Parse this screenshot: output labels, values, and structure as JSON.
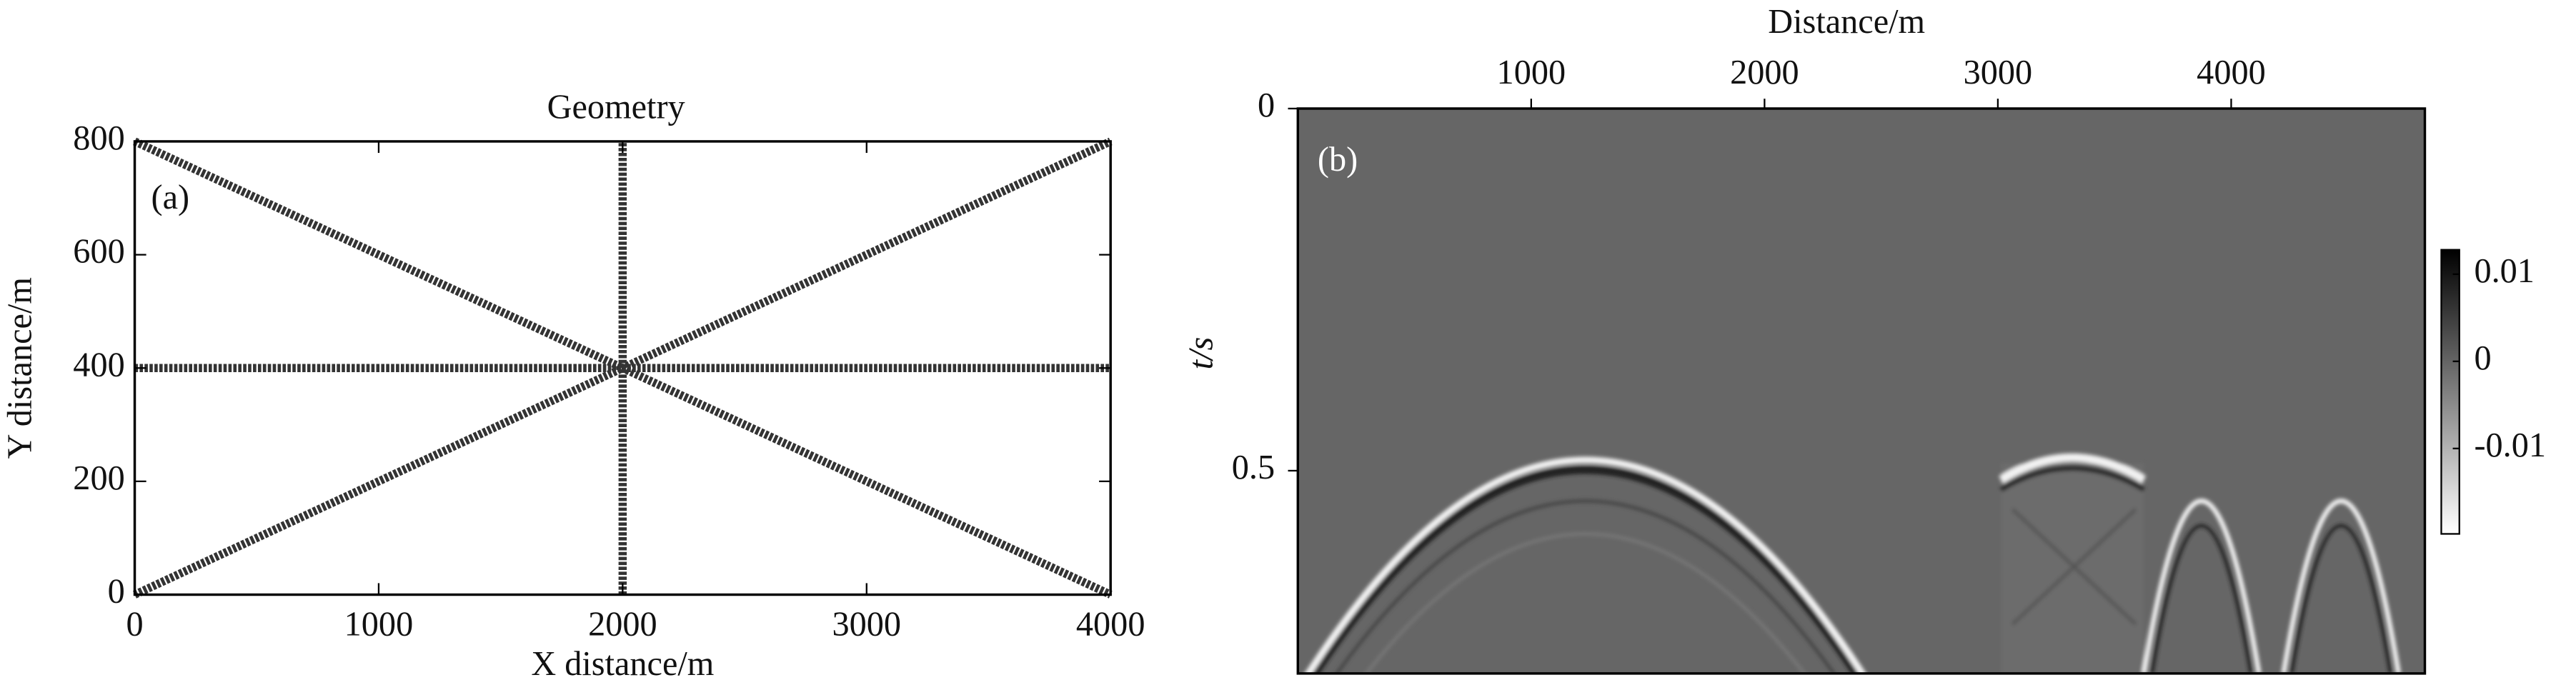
{
  "chart_data": [
    {
      "type": "line",
      "title": "Geometry",
      "panel_label": "(a)",
      "xlabel": "X distance/m",
      "ylabel": "Y distance/m",
      "xlim": [
        0,
        4000
      ],
      "ylim": [
        0,
        800
      ],
      "xticks": [
        0,
        1000,
        2000,
        3000,
        4000
      ],
      "yticks": [
        0,
        200,
        400,
        600,
        800
      ],
      "series": [
        {
          "color": "#333333",
          "x": [
            0,
            4000
          ],
          "values": [
            800,
            0
          ]
        },
        {
          "color": "#333333",
          "x": [
            0,
            4000
          ],
          "values": [
            0,
            800
          ]
        },
        {
          "color": "#333333",
          "x": [
            0,
            4000
          ],
          "values": [
            400,
            400
          ]
        },
        {
          "color": "#333333",
          "x": [
            2000,
            2000
          ],
          "values": [
            0,
            800
          ]
        }
      ]
    },
    {
      "type": "image",
      "panel_label": "(b)",
      "xlabel": "Distance/m",
      "ylabel": "t/s",
      "xlim": [
        0,
        4830
      ],
      "ylim": [
        0,
        0.78
      ],
      "xticks": [
        1000,
        2000,
        3000,
        4000
      ],
      "yticks": [
        0,
        0.5
      ],
      "colorbar": {
        "lim": [
          -0.0198,
          0.0128
        ],
        "ticks": [
          0.01,
          0,
          -0.01
        ]
      }
    }
  ]
}
